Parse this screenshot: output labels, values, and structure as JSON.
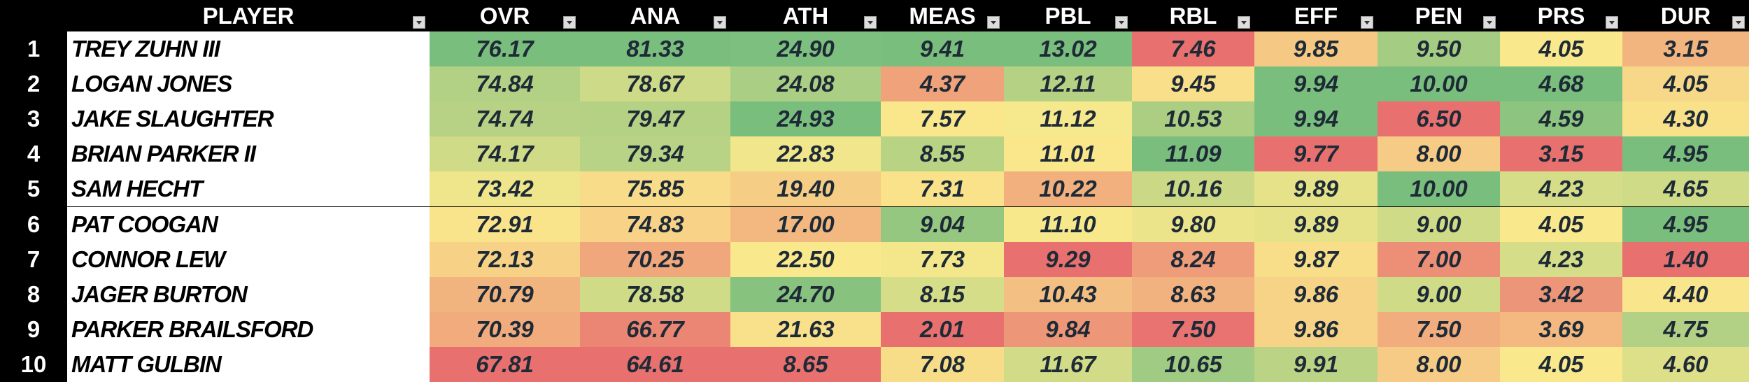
{
  "header": {
    "rank": "",
    "player": "PLAYER",
    "stats": [
      "OVR",
      "ANA",
      "ATH",
      "MEAS",
      "PBL",
      "RBL",
      "EFF",
      "PEN",
      "PRS",
      "DUR"
    ]
  },
  "rows": [
    {
      "rank": "1",
      "player": "TREY ZUHN III",
      "stats": [
        "76.17",
        "81.33",
        "24.90",
        "9.41",
        "13.02",
        "7.46",
        "9.85",
        "9.50",
        "4.05",
        "3.15"
      ]
    },
    {
      "rank": "2",
      "player": "LOGAN JONES",
      "stats": [
        "74.84",
        "78.67",
        "24.08",
        "4.37",
        "12.11",
        "9.45",
        "9.94",
        "10.00",
        "4.68",
        "4.05"
      ]
    },
    {
      "rank": "3",
      "player": "JAKE SLAUGHTER",
      "stats": [
        "74.74",
        "79.47",
        "24.93",
        "7.57",
        "11.12",
        "10.53",
        "9.94",
        "6.50",
        "4.59",
        "4.30"
      ]
    },
    {
      "rank": "4",
      "player": "BRIAN PARKER II",
      "stats": [
        "74.17",
        "79.34",
        "22.83",
        "8.55",
        "11.01",
        "11.09",
        "9.77",
        "8.00",
        "3.15",
        "4.95"
      ]
    },
    {
      "rank": "5",
      "player": "SAM HECHT",
      "stats": [
        "73.42",
        "75.85",
        "19.40",
        "7.31",
        "10.22",
        "10.16",
        "9.89",
        "10.00",
        "4.23",
        "4.65"
      ]
    },
    {
      "rank": "6",
      "player": "PAT COOGAN",
      "stats": [
        "72.91",
        "74.83",
        "17.00",
        "9.04",
        "11.10",
        "9.80",
        "9.89",
        "9.00",
        "4.05",
        "4.95"
      ]
    },
    {
      "rank": "7",
      "player": "CONNOR LEW",
      "stats": [
        "72.13",
        "70.25",
        "22.50",
        "7.73",
        "9.29",
        "8.24",
        "9.87",
        "7.00",
        "4.23",
        "1.40"
      ]
    },
    {
      "rank": "8",
      "player": "JAGER BURTON",
      "stats": [
        "70.79",
        "78.58",
        "24.70",
        "8.15",
        "10.43",
        "8.63",
        "9.86",
        "9.00",
        "3.42",
        "4.40"
      ]
    },
    {
      "rank": "9",
      "player": "PARKER BRAILSFORD",
      "stats": [
        "70.39",
        "66.77",
        "21.63",
        "2.01",
        "9.84",
        "7.50",
        "9.86",
        "7.50",
        "3.69",
        "4.75"
      ]
    },
    {
      "rank": "10",
      "player": "MATT GULBIN",
      "stats": [
        "67.81",
        "64.61",
        "8.65",
        "7.08",
        "11.67",
        "10.65",
        "9.91",
        "8.00",
        "4.05",
        "4.60"
      ]
    }
  ]
}
